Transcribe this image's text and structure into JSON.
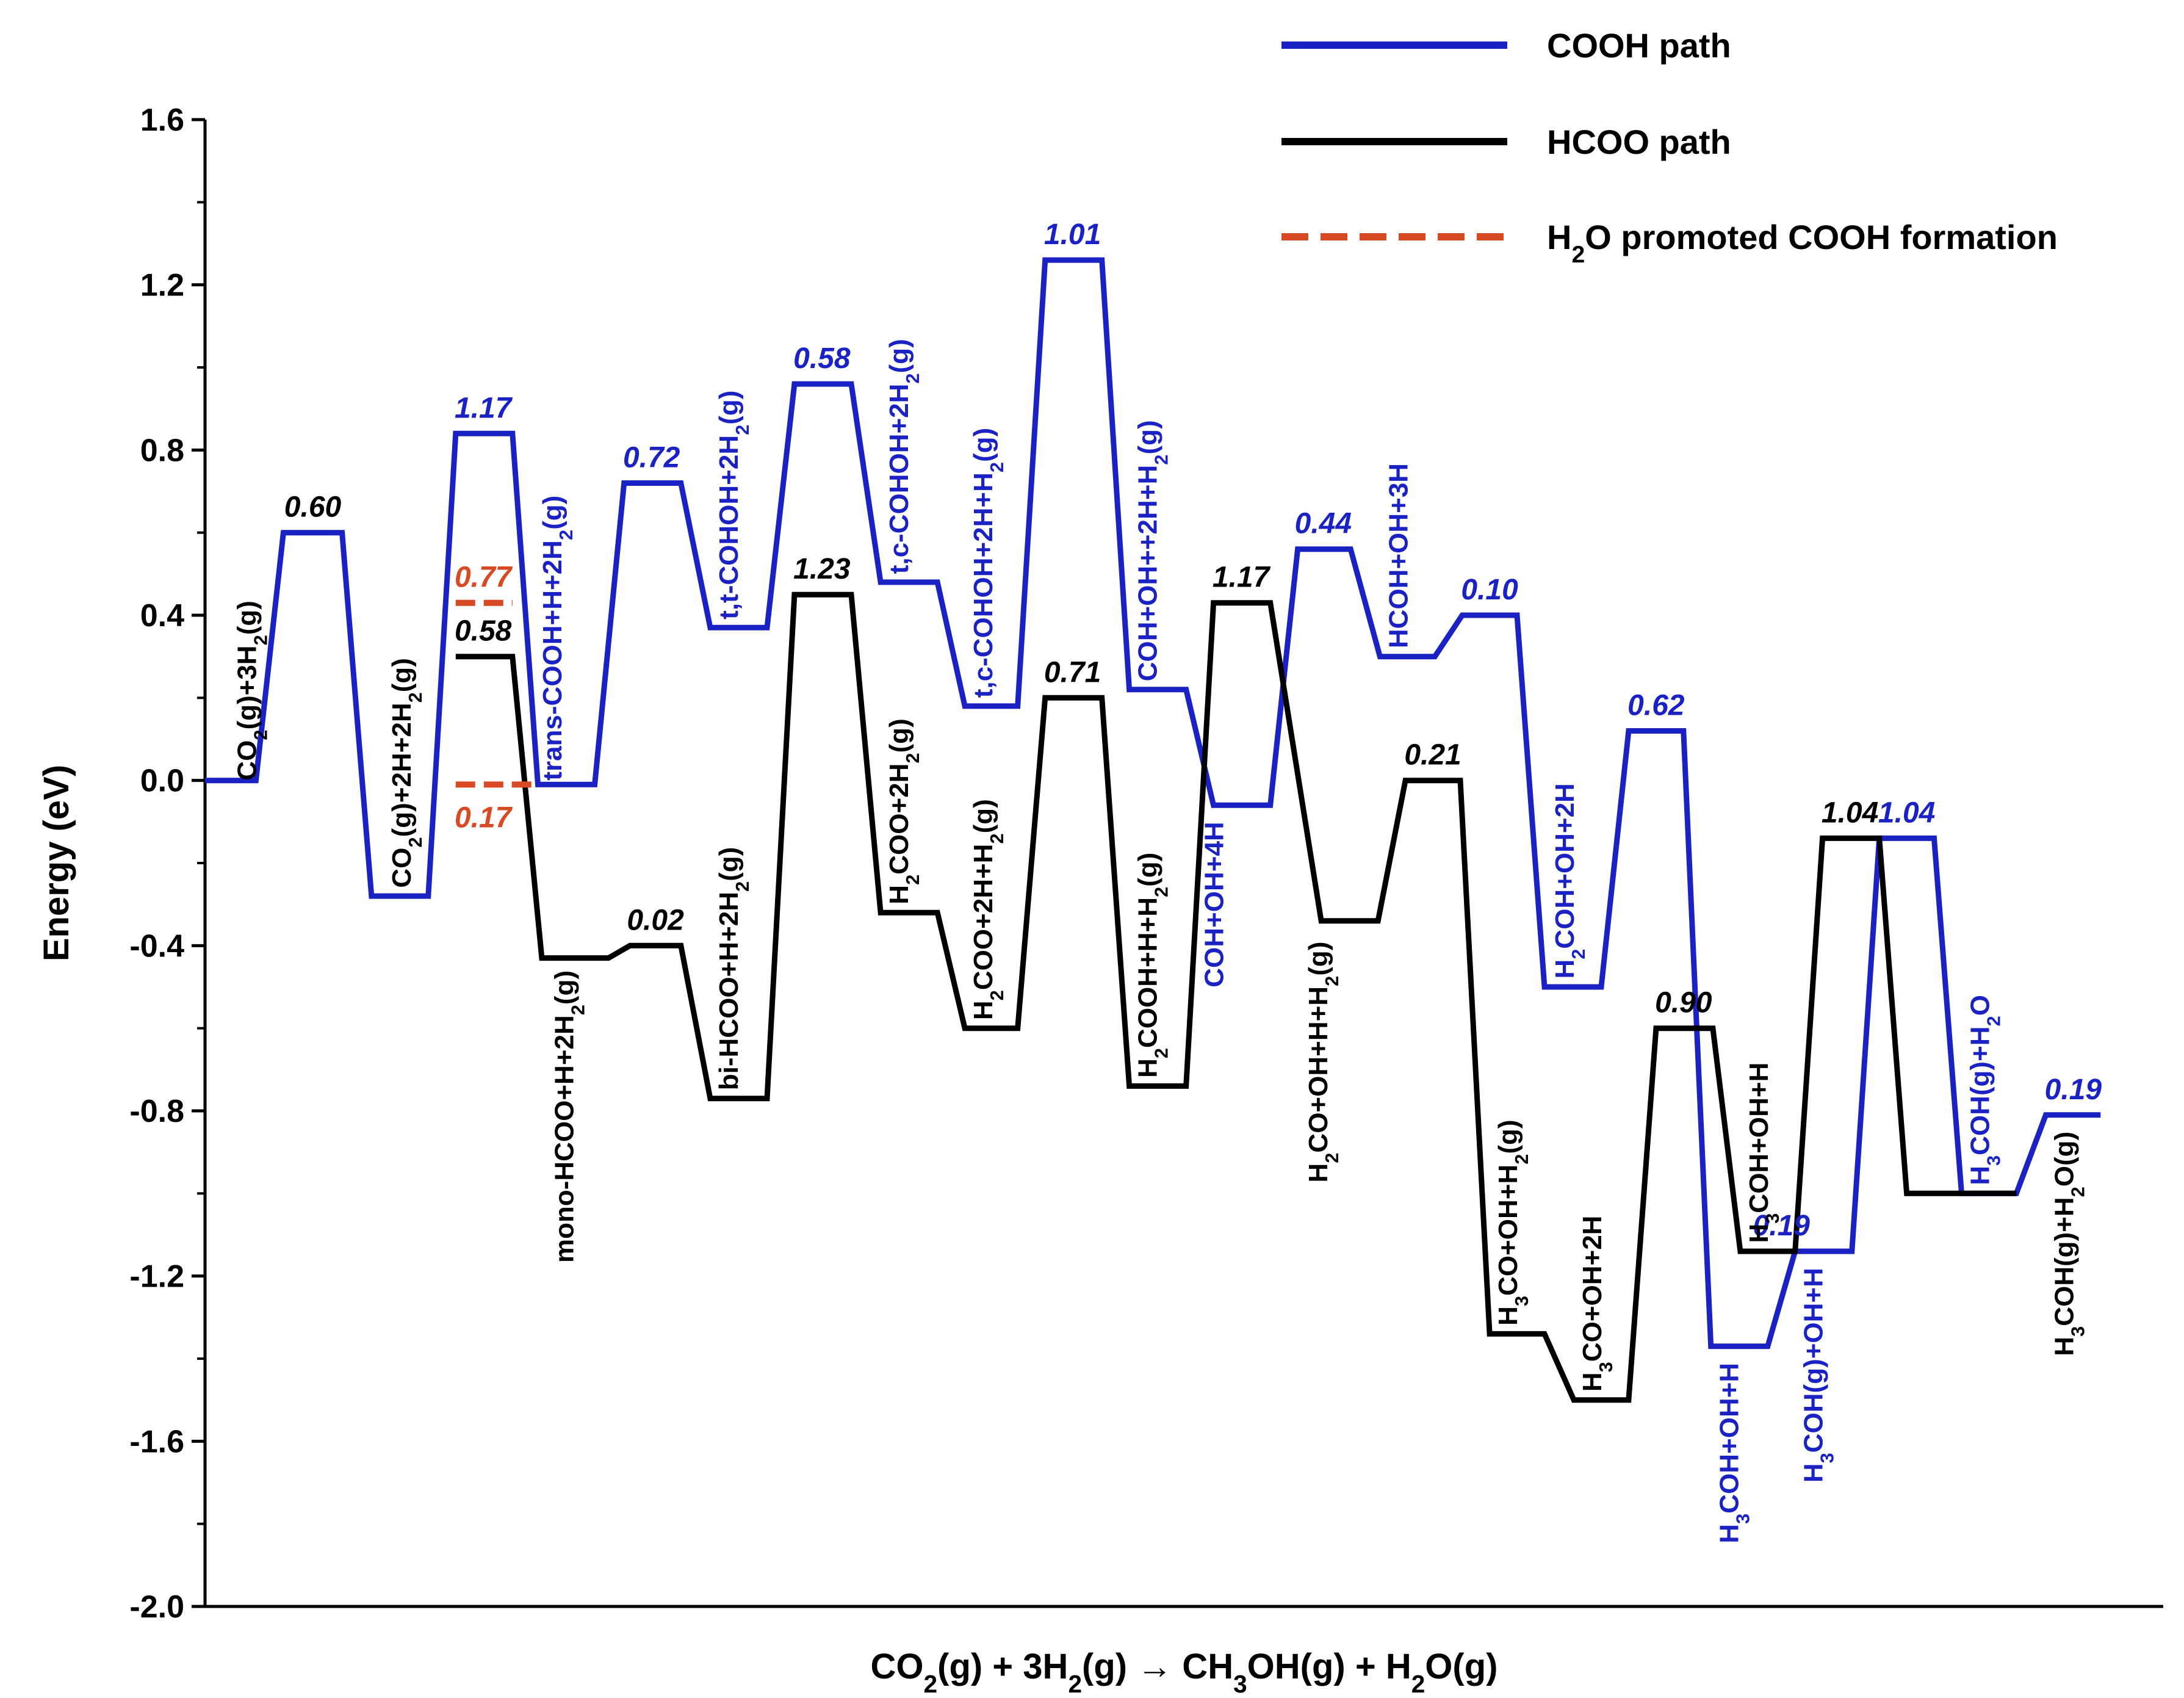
{
  "chart_data": {
    "type": "line",
    "title": "",
    "xlabel": "CO2(g) + 3H2(g) → CH3OH(g) + H2O(g)",
    "ylabel": "Energy (eV)",
    "ylim": [
      -2.0,
      1.6
    ],
    "ytick_values": [
      1.6,
      1.2,
      0.8,
      0.4,
      0.0,
      -0.4,
      -0.8,
      -1.2,
      -1.6,
      -2.0
    ],
    "ytick_labels": [
      "1.6",
      "1.2",
      "0.8",
      "0.4",
      "0.0",
      "-0.4",
      "-0.8",
      "-1.2",
      "-1.6",
      "-2.0"
    ],
    "x_unit": "reaction coordinate (position, 0–100)",
    "colors": {
      "cooh": "#1b22c4",
      "hcoo": "#000000",
      "h2o": "#d84a24"
    },
    "legend": [
      {
        "key": "cooh",
        "label": "COOH path",
        "style": "solid"
      },
      {
        "key": "hcoo",
        "label": "HCOO path",
        "style": "solid"
      },
      {
        "key": "h2o",
        "label": "H2O promoted COOH formation",
        "style": "dashed"
      }
    ],
    "series": [
      {
        "name": "COOH path",
        "key": "cooh",
        "points": [
          [
            0,
            0
          ],
          [
            2.6,
            0
          ],
          [
            4.0,
            0.6
          ],
          [
            7.0,
            0.6
          ],
          [
            8.5,
            -0.28
          ],
          [
            11.4,
            -0.28
          ],
          [
            12.8,
            0.84
          ],
          [
            15.7,
            0.84
          ],
          [
            17.0,
            -0.01
          ],
          [
            19.9,
            -0.01
          ],
          [
            21.4,
            0.72
          ],
          [
            24.3,
            0.72
          ],
          [
            25.8,
            0.37
          ],
          [
            28.7,
            0.37
          ],
          [
            30.1,
            0.96
          ],
          [
            33.0,
            0.96
          ],
          [
            34.5,
            0.48
          ],
          [
            37.4,
            0.48
          ],
          [
            38.8,
            0.18
          ],
          [
            41.5,
            0.18
          ],
          [
            42.9,
            1.26
          ],
          [
            45.8,
            1.26
          ],
          [
            47.2,
            0.22
          ],
          [
            50.1,
            0.22
          ],
          [
            51.5,
            -0.06
          ],
          [
            54.4,
            -0.06
          ],
          [
            55.8,
            0.56
          ],
          [
            58.5,
            0.56
          ],
          [
            60.0,
            0.3
          ],
          [
            62.8,
            0.3
          ],
          [
            64.2,
            0.4
          ],
          [
            67.0,
            0.4
          ],
          [
            68.4,
            -0.5
          ],
          [
            71.3,
            -0.5
          ],
          [
            72.7,
            0.12
          ],
          [
            75.5,
            0.12
          ],
          [
            76.9,
            -1.37
          ],
          [
            79.8,
            -1.37
          ],
          [
            81.2,
            -1.14
          ],
          [
            84.1,
            -1.14
          ],
          [
            85.5,
            -0.14
          ],
          [
            88.3,
            -0.14
          ],
          [
            89.7,
            -1.0
          ],
          [
            92.5,
            -1.0
          ],
          [
            94.0,
            -0.81
          ],
          [
            96.8,
            -0.81
          ]
        ]
      },
      {
        "name": "HCOO path",
        "key": "hcoo",
        "points": [
          [
            12.8,
            0.3
          ],
          [
            15.7,
            0.3
          ],
          [
            17.2,
            -0.43
          ],
          [
            20.6,
            -0.43
          ],
          [
            21.7,
            -0.4
          ],
          [
            24.3,
            -0.4
          ],
          [
            25.8,
            -0.77
          ],
          [
            28.7,
            -0.77
          ],
          [
            30.1,
            0.45
          ],
          [
            33.0,
            0.45
          ],
          [
            34.5,
            -0.32
          ],
          [
            37.4,
            -0.32
          ],
          [
            38.8,
            -0.6
          ],
          [
            41.5,
            -0.6
          ],
          [
            42.9,
            0.2
          ],
          [
            45.8,
            0.2
          ],
          [
            47.2,
            -0.74
          ],
          [
            50.1,
            -0.74
          ],
          [
            51.5,
            0.43
          ],
          [
            54.4,
            0.43
          ],
          [
            57.0,
            -0.34
          ],
          [
            59.9,
            -0.34
          ],
          [
            61.3,
            0.0
          ],
          [
            64.1,
            0.0
          ],
          [
            65.6,
            -1.34
          ],
          [
            68.4,
            -1.34
          ],
          [
            69.9,
            -1.5
          ],
          [
            72.7,
            -1.5
          ],
          [
            74.1,
            -0.6
          ],
          [
            77.0,
            -0.6
          ],
          [
            78.4,
            -1.14
          ],
          [
            81.2,
            -1.14
          ],
          [
            82.6,
            -0.14
          ],
          [
            85.5,
            -0.14
          ],
          [
            86.9,
            -1.0
          ],
          [
            89.7,
            -1.0
          ],
          [
            92.5,
            -1.0
          ]
        ]
      },
      {
        "name": "H2O promoted COOH formation",
        "key": "h2o",
        "segments": [
          [
            [
              12.8,
              0.43
            ],
            [
              15.7,
              0.43
            ]
          ],
          [
            [
              12.8,
              -0.01
            ],
            [
              17.0,
              -0.01
            ]
          ]
        ]
      }
    ],
    "barrier_labels": [
      {
        "text": "0.60",
        "x": 5.5,
        "y": 0.6,
        "series": "hcoo"
      },
      {
        "text": "1.17",
        "x": 14.2,
        "y": 0.84,
        "series": "cooh"
      },
      {
        "text": "0.77",
        "x": 14.2,
        "y": 0.43,
        "series": "h2o"
      },
      {
        "text": "0.58",
        "x": 14.2,
        "y": 0.3,
        "series": "hcoo"
      },
      {
        "text": "0.17",
        "x": 14.2,
        "y": -0.01,
        "series": "h2o",
        "below": true
      },
      {
        "text": "0.72",
        "x": 22.8,
        "y": 0.72,
        "series": "cooh"
      },
      {
        "text": "0.02",
        "x": 23.0,
        "y": -0.4,
        "series": "hcoo"
      },
      {
        "text": "0.58",
        "x": 31.5,
        "y": 0.96,
        "series": "cooh"
      },
      {
        "text": "1.23",
        "x": 31.5,
        "y": 0.45,
        "series": "hcoo"
      },
      {
        "text": "1.01",
        "x": 44.3,
        "y": 1.26,
        "series": "cooh"
      },
      {
        "text": "0.71",
        "x": 44.3,
        "y": 0.2,
        "series": "hcoo"
      },
      {
        "text": "1.17",
        "x": 52.9,
        "y": 0.43,
        "series": "hcoo"
      },
      {
        "text": "0.44",
        "x": 57.1,
        "y": 0.56,
        "series": "cooh"
      },
      {
        "text": "0.21",
        "x": 62.7,
        "y": 0.0,
        "series": "hcoo"
      },
      {
        "text": "0.10",
        "x": 65.6,
        "y": 0.4,
        "series": "cooh"
      },
      {
        "text": "0.62",
        "x": 74.1,
        "y": 0.12,
        "series": "cooh"
      },
      {
        "text": "0.90",
        "x": 75.5,
        "y": -0.6,
        "series": "hcoo"
      },
      {
        "text": "0.19",
        "x": 80.5,
        "y": -1.14,
        "series": "cooh"
      },
      {
        "text": "1.04",
        "x": 84.0,
        "y": -0.14,
        "series": "hcoo"
      },
      {
        "text": "1.04",
        "x": 86.9,
        "y": -0.14,
        "series": "cooh"
      },
      {
        "text": "0.19",
        "x": 95.4,
        "y": -0.81,
        "series": "cooh"
      }
    ],
    "state_labels": [
      {
        "text": "CO2(g)+3H2(g)",
        "x": 2.6,
        "y": 0.0,
        "series": "hcoo",
        "dir": "up"
      },
      {
        "text": "CO2(g)+2H+2H2(g)",
        "x": 10.5,
        "y": -0.26,
        "series": "hcoo",
        "dir": "up"
      },
      {
        "text": "trans-COOH+H+2H2(g)",
        "x": 18.2,
        "y": 0.0,
        "series": "cooh",
        "dir": "up"
      },
      {
        "text": "mono-HCOO+H+2H2(g)",
        "x": 18.8,
        "y": -0.46,
        "series": "hcoo",
        "dir": "down"
      },
      {
        "text": "t,t-COHOH+2H2(g)",
        "x": 27.2,
        "y": 0.39,
        "series": "cooh",
        "dir": "up"
      },
      {
        "text": "bi-HCOO+H+2H2(g)",
        "x": 27.2,
        "y": -0.75,
        "series": "hcoo",
        "dir": "up"
      },
      {
        "text": "t,c-COHOH+2H2(g)",
        "x": 35.9,
        "y": 0.5,
        "series": "cooh",
        "dir": "up"
      },
      {
        "text": "H2COO+2H2(g)",
        "x": 35.9,
        "y": -0.3,
        "series": "hcoo",
        "dir": "up"
      },
      {
        "text": "t,c-COHOH+2H+H2(g)",
        "x": 40.2,
        "y": 0.2,
        "series": "cooh",
        "dir": "up"
      },
      {
        "text": "H2COO+2H+H2(g)",
        "x": 40.2,
        "y": -0.58,
        "series": "hcoo",
        "dir": "up"
      },
      {
        "text": "COH+OH++2H+H2(g)",
        "x": 48.6,
        "y": 0.24,
        "series": "cooh",
        "dir": "up"
      },
      {
        "text": "H2COOH+H+H2(g)",
        "x": 48.6,
        "y": -0.72,
        "series": "hcoo",
        "dir": "up"
      },
      {
        "text": "COH+OH+4H",
        "x": 52.0,
        "y": -0.1,
        "series": "cooh",
        "dir": "down"
      },
      {
        "text": "H2CO+OH+H+H2(g)",
        "x": 57.3,
        "y": -0.39,
        "series": "hcoo",
        "dir": "down"
      },
      {
        "text": "HCOH+OH+3H",
        "x": 61.4,
        "y": 0.32,
        "series": "cooh",
        "dir": "up"
      },
      {
        "text": "H2COH+OH+2H",
        "x": 69.9,
        "y": -0.48,
        "series": "cooh",
        "dir": "up"
      },
      {
        "text": "H3CO+OH+H2(g)",
        "x": 67.0,
        "y": -1.32,
        "series": "hcoo",
        "dir": "up"
      },
      {
        "text": "H3CO+OH+2H",
        "x": 71.3,
        "y": -1.48,
        "series": "hcoo",
        "dir": "up"
      },
      {
        "text": "H3COH+OH+H",
        "x": 79.8,
        "y": -1.12,
        "series": "hcoo",
        "dir": "up"
      },
      {
        "text": "H3COH+OH+H",
        "x": 78.3,
        "y": -1.41,
        "series": "cooh",
        "dir": "down"
      },
      {
        "text": "H3COH(g)+OH+H",
        "x": 82.6,
        "y": -1.18,
        "series": "cooh",
        "dir": "down"
      },
      {
        "text": "H3COH(g)+H2O",
        "x": 91.1,
        "y": -0.98,
        "series": "cooh",
        "dir": "up"
      },
      {
        "text": "H3COH(g)+H2O(g)",
        "x": 95.4,
        "y": -0.85,
        "series": "hcoo",
        "dir": "down"
      }
    ]
  }
}
